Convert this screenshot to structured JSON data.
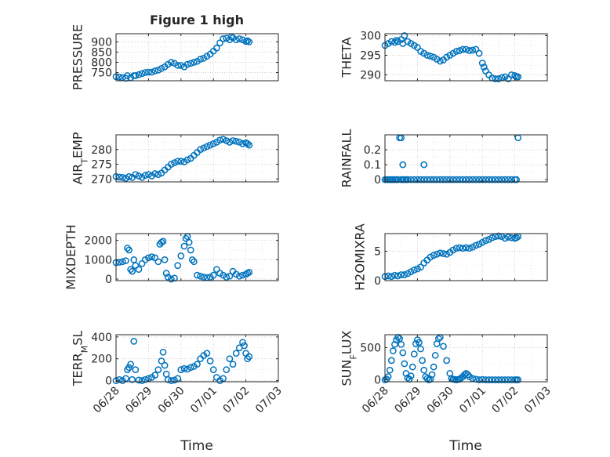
{
  "figure": {
    "title": "Figure 1 high",
    "xlabel_left": "Time",
    "xlabel_right": "Time",
    "x_tick_labels": [
      "06/28",
      "06/29",
      "06/30",
      "07/01",
      "07/02",
      "07/03"
    ],
    "marker_color": "#0072BD"
  },
  "chart_data": [
    {
      "type": "scatter",
      "ylabel": "PRESSURE",
      "xlim": [
        0,
        5
      ],
      "ylim": [
        710,
        940
      ],
      "yticks": [
        750,
        800,
        850,
        900
      ],
      "ytick_labels": [
        "750",
        "800",
        "850",
        "900"
      ],
      "x": [
        0.0,
        0.1,
        0.2,
        0.3,
        0.35,
        0.45,
        0.55,
        0.6,
        0.7,
        0.8,
        0.9,
        1.0,
        1.1,
        1.2,
        1.3,
        1.4,
        1.5,
        1.6,
        1.7,
        1.8,
        1.9,
        2.0,
        2.1,
        2.2,
        2.3,
        2.4,
        2.5,
        2.6,
        2.7,
        2.8,
        2.9,
        3.0,
        3.1,
        3.2,
        3.3,
        3.4,
        3.5,
        3.55,
        3.6,
        3.7,
        3.8,
        3.9,
        4.0,
        4.05,
        4.1
      ],
      "y": [
        730,
        728,
        725,
        722,
        735,
        725,
        735,
        735,
        740,
        745,
        750,
        752,
        752,
        758,
        762,
        770,
        778,
        790,
        800,
        795,
        785,
        785,
        778,
        790,
        795,
        800,
        805,
        815,
        820,
        830,
        840,
        855,
        870,
        895,
        915,
        918,
        910,
        925,
        920,
        910,
        915,
        910,
        902,
        905,
        900
      ]
    },
    {
      "type": "scatter",
      "ylabel": "THETA",
      "xlim": [
        0,
        5
      ],
      "ylim": [
        288.5,
        300.5
      ],
      "yticks": [
        290,
        295,
        300
      ],
      "ytick_labels": [
        "290",
        "295",
        "300"
      ],
      "x": [
        0.0,
        0.1,
        0.2,
        0.3,
        0.35,
        0.4,
        0.5,
        0.55,
        0.6,
        0.7,
        0.8,
        0.9,
        1.0,
        1.1,
        1.2,
        1.3,
        1.4,
        1.5,
        1.6,
        1.7,
        1.8,
        1.9,
        2.0,
        2.1,
        2.2,
        2.3,
        2.4,
        2.5,
        2.6,
        2.7,
        2.8,
        2.9,
        3.0,
        3.05,
        3.1,
        3.2,
        3.3,
        3.4,
        3.5,
        3.6,
        3.7,
        3.8,
        3.9,
        4.0,
        4.05,
        4.1
      ],
      "y": [
        297.5,
        298,
        298.5,
        298.3,
        298.8,
        298.5,
        299,
        298,
        300,
        298.5,
        298,
        297.5,
        297,
        296,
        295.5,
        295,
        294.8,
        294.5,
        294,
        293.5,
        293.8,
        294.5,
        295,
        295.5,
        296,
        296.2,
        296.5,
        296.5,
        296.2,
        296.3,
        296.5,
        295.5,
        293,
        292,
        291,
        290,
        289.2,
        289,
        289,
        289.3,
        289.5,
        289,
        290,
        289.8,
        289.5,
        289.5
      ]
    },
    {
      "type": "scatter",
      "ylabel": "AIR_TEMP",
      "ylabel_main": "AIR",
      "ylabel_sub": "T",
      "ylabel_tail": "EMP",
      "xlim": [
        0,
        5
      ],
      "ylim": [
        269,
        285
      ],
      "yticks": [
        270,
        275,
        280
      ],
      "ytick_labels": [
        "270",
        "275",
        "280"
      ],
      "x": [
        0.0,
        0.1,
        0.2,
        0.3,
        0.4,
        0.5,
        0.6,
        0.7,
        0.8,
        0.9,
        1.0,
        1.1,
        1.2,
        1.3,
        1.4,
        1.5,
        1.6,
        1.7,
        1.8,
        1.9,
        2.0,
        2.1,
        2.2,
        2.3,
        2.4,
        2.5,
        2.6,
        2.7,
        2.8,
        2.9,
        3.0,
        3.1,
        3.2,
        3.3,
        3.4,
        3.5,
        3.6,
        3.7,
        3.8,
        3.9,
        4.0,
        4.05,
        4.1
      ],
      "y": [
        270.8,
        270.6,
        270.5,
        270.2,
        270.8,
        270.5,
        271.5,
        271,
        270.5,
        271.2,
        271.5,
        271,
        271.8,
        271.5,
        272,
        273,
        274,
        275,
        275.5,
        276,
        276,
        275.8,
        276.5,
        277,
        278,
        279,
        280,
        280.5,
        281,
        281.5,
        282,
        282.5,
        283.2,
        283.5,
        283,
        282.5,
        283,
        282.8,
        282.5,
        282,
        282.3,
        282,
        281.5
      ]
    },
    {
      "type": "scatter",
      "ylabel": "RAINFALL",
      "xlim": [
        0,
        5
      ],
      "ylim": [
        -0.015,
        0.3
      ],
      "yticks": [
        0,
        0.1,
        0.2
      ],
      "ytick_labels": [
        "0",
        "0.1",
        "0.2"
      ],
      "x": [
        0.0,
        0.05,
        0.1,
        0.15,
        0.2,
        0.25,
        0.3,
        0.35,
        0.4,
        0.5,
        0.55,
        0.6,
        0.65,
        0.7,
        0.8,
        0.9,
        1.0,
        1.1,
        1.2,
        1.3,
        1.4,
        1.5,
        1.6,
        1.7,
        1.8,
        1.9,
        2.0,
        2.1,
        2.2,
        2.3,
        2.4,
        2.5,
        2.6,
        2.7,
        2.8,
        2.9,
        3.0,
        3.1,
        3.2,
        3.3,
        3.4,
        3.5,
        3.6,
        3.7,
        3.8,
        3.9,
        4.0,
        4.05,
        4.1,
        0.45,
        0.5,
        0.55,
        1.2
      ],
      "y": [
        0,
        0,
        0,
        0,
        0,
        0,
        0,
        0,
        0,
        0,
        0,
        0,
        0,
        0,
        0,
        0,
        0,
        0,
        0,
        0,
        0,
        0,
        0,
        0,
        0,
        0,
        0,
        0,
        0,
        0,
        0,
        0,
        0,
        0,
        0,
        0,
        0,
        0,
        0,
        0,
        0,
        0,
        0,
        0,
        0,
        0,
        0,
        0,
        0.28,
        0.28,
        0.28,
        0.1,
        0.1
      ]
    },
    {
      "type": "scatter",
      "ylabel": "MIXDEPTH",
      "xlim": [
        0,
        5
      ],
      "ylim": [
        -80,
        2350
      ],
      "yticks": [
        0,
        1000,
        2000
      ],
      "ytick_labels": [
        "0",
        "1000",
        "2000"
      ],
      "x": [
        0.0,
        0.1,
        0.2,
        0.3,
        0.35,
        0.4,
        0.45,
        0.5,
        0.55,
        0.6,
        0.7,
        0.8,
        0.9,
        1.0,
        1.1,
        1.2,
        1.3,
        1.35,
        1.4,
        1.45,
        1.5,
        1.55,
        1.6,
        1.7,
        1.8,
        1.9,
        2.0,
        2.1,
        2.15,
        2.2,
        2.25,
        2.3,
        2.35,
        2.4,
        2.5,
        2.6,
        2.7,
        2.8,
        2.9,
        3.0,
        3.1,
        3.2,
        3.3,
        3.4,
        3.5,
        3.6,
        3.7,
        3.8,
        3.9,
        4.0,
        4.05,
        4.1
      ],
      "y": [
        850,
        870,
        900,
        950,
        1600,
        1500,
        500,
        400,
        1000,
        700,
        500,
        800,
        1000,
        1100,
        1150,
        1100,
        900,
        1800,
        1900,
        1950,
        1000,
        300,
        100,
        0,
        50,
        700,
        1200,
        1700,
        2100,
        2200,
        1900,
        1500,
        1000,
        900,
        200,
        150,
        100,
        80,
        100,
        200,
        500,
        300,
        200,
        100,
        150,
        400,
        250,
        150,
        200,
        250,
        300,
        350
      ]
    },
    {
      "type": "scatter",
      "ylabel": "H2OMIXRA",
      "xlim": [
        0,
        5
      ],
      "ylim": [
        0,
        8
      ],
      "yticks": [
        0,
        5
      ],
      "ytick_labels": [
        "0",
        "5"
      ],
      "x": [
        0.0,
        0.1,
        0.2,
        0.3,
        0.4,
        0.5,
        0.6,
        0.7,
        0.8,
        0.9,
        1.0,
        1.1,
        1.2,
        1.3,
        1.4,
        1.5,
        1.6,
        1.7,
        1.8,
        1.9,
        2.0,
        2.1,
        2.2,
        2.3,
        2.4,
        2.5,
        2.6,
        2.7,
        2.8,
        2.9,
        3.0,
        3.1,
        3.2,
        3.3,
        3.4,
        3.5,
        3.6,
        3.7,
        3.8,
        3.9,
        4.0,
        4.05,
        4.1
      ],
      "y": [
        0.7,
        0.8,
        0.7,
        0.9,
        0.8,
        1.0,
        1.0,
        1.2,
        1.5,
        1.8,
        2.0,
        2.3,
        3.0,
        3.5,
        4.0,
        4.3,
        4.5,
        4.7,
        4.6,
        4.5,
        4.8,
        5.2,
        5.5,
        5.6,
        5.5,
        5.6,
        5.5,
        5.7,
        6.0,
        6.2,
        6.5,
        6.8,
        7.0,
        7.3,
        7.5,
        7.6,
        7.5,
        7.2,
        7.4,
        7.3,
        7.2,
        7.3,
        7.5
      ]
    },
    {
      "type": "scatter",
      "ylabel": "TERR_MSL",
      "ylabel_main": "TERR",
      "ylabel_sub": "M",
      "ylabel_tail": "SL",
      "xlim": [
        0,
        5
      ],
      "ylim": [
        -10,
        420
      ],
      "yticks": [
        0,
        200,
        400
      ],
      "ytick_labels": [
        "0",
        "200",
        "400"
      ],
      "x": [
        0.0,
        0.1,
        0.2,
        0.3,
        0.35,
        0.4,
        0.45,
        0.5,
        0.55,
        0.6,
        0.7,
        0.8,
        0.9,
        1.0,
        1.1,
        1.2,
        1.3,
        1.4,
        1.45,
        1.5,
        1.55,
        1.6,
        1.7,
        1.8,
        1.9,
        2.0,
        2.1,
        2.2,
        2.3,
        2.4,
        2.5,
        2.6,
        2.7,
        2.8,
        2.9,
        3.0,
        3.1,
        3.2,
        3.3,
        3.4,
        3.5,
        3.6,
        3.7,
        3.8,
        3.9,
        3.95,
        4.0,
        4.05,
        4.1
      ],
      "y": [
        0,
        10,
        0,
        20,
        100,
        120,
        150,
        10,
        360,
        100,
        5,
        0,
        10,
        20,
        30,
        50,
        100,
        180,
        260,
        140,
        60,
        10,
        0,
        5,
        20,
        100,
        110,
        105,
        120,
        130,
        150,
        200,
        230,
        250,
        180,
        100,
        30,
        0,
        20,
        100,
        200,
        150,
        250,
        300,
        350,
        320,
        250,
        200,
        220
      ]
    },
    {
      "type": "scatter",
      "ylabel": "SUN_FLUX",
      "ylabel_main": "SUN",
      "ylabel_sub": "F",
      "ylabel_tail": "LUX",
      "xlim": [
        0,
        5
      ],
      "ylim": [
        -30,
        700
      ],
      "yticks": [
        0,
        500
      ],
      "ytick_labels": [
        "0",
        "500"
      ],
      "x": [
        0.0,
        0.05,
        0.1,
        0.15,
        0.2,
        0.25,
        0.3,
        0.35,
        0.4,
        0.45,
        0.5,
        0.55,
        0.6,
        0.65,
        0.7,
        0.75,
        0.8,
        0.85,
        0.9,
        0.95,
        1.0,
        1.05,
        1.1,
        1.15,
        1.2,
        1.25,
        1.3,
        1.35,
        1.4,
        1.45,
        1.5,
        1.55,
        1.6,
        1.65,
        1.7,
        1.8,
        1.9,
        2.0,
        2.05,
        2.1,
        2.15,
        2.2,
        2.25,
        2.3,
        2.35,
        2.4,
        2.45,
        2.5,
        2.55,
        2.6,
        2.7,
        2.8,
        2.9,
        3.0,
        3.1,
        3.2,
        3.3,
        3.4,
        3.5,
        3.6,
        3.7,
        3.8,
        3.9,
        4.0,
        4.05,
        4.1
      ],
      "y": [
        0,
        10,
        50,
        150,
        300,
        450,
        550,
        620,
        660,
        640,
        550,
        420,
        250,
        100,
        30,
        10,
        60,
        200,
        400,
        560,
        620,
        580,
        480,
        300,
        150,
        50,
        20,
        0,
        10,
        80,
        200,
        380,
        560,
        640,
        660,
        520,
        300,
        100,
        20,
        10,
        5,
        0,
        5,
        10,
        30,
        50,
        80,
        100,
        80,
        50,
        20,
        10,
        0,
        5,
        0,
        0,
        0,
        0,
        0,
        0,
        0,
        0,
        0,
        0,
        0,
        0
      ]
    }
  ]
}
